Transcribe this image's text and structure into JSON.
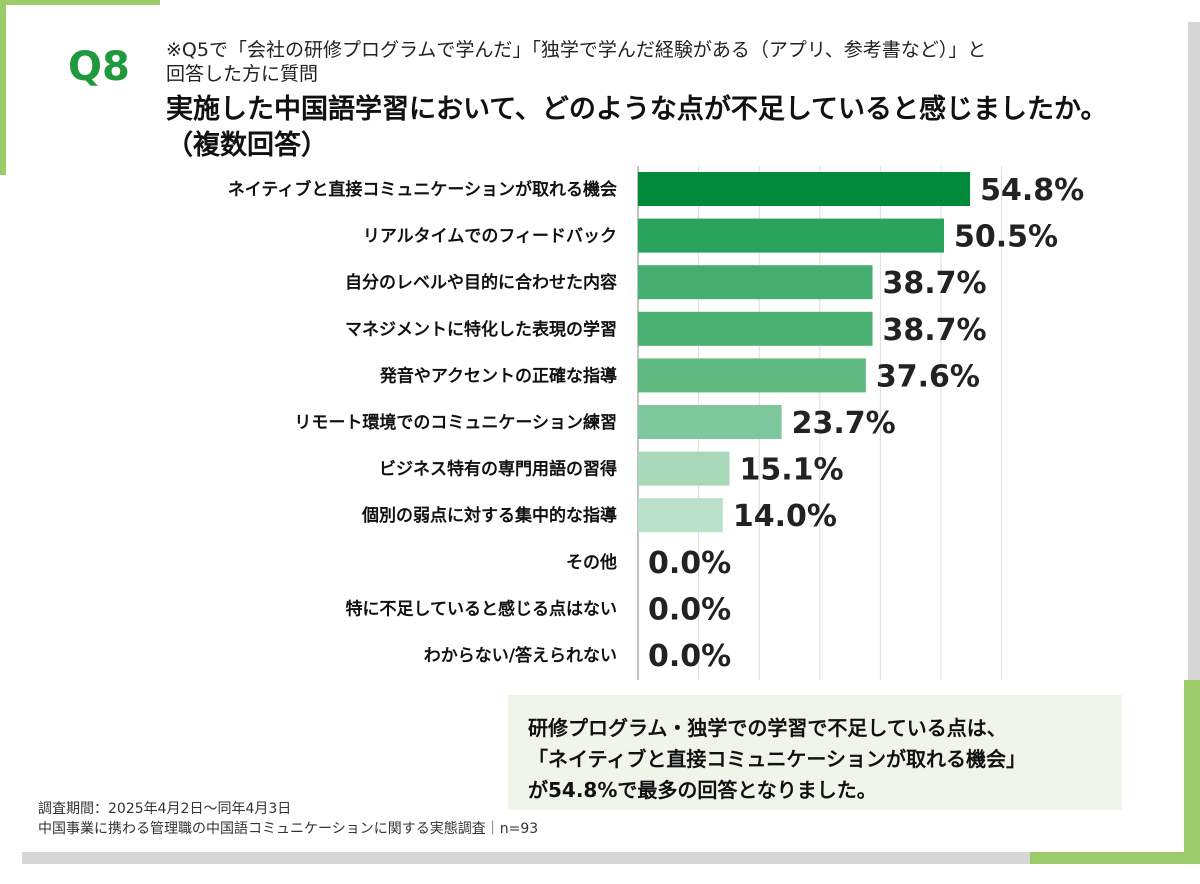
{
  "question_label": "Q8",
  "subtitle_lines": [
    "※Q5で「会社の研修プログラムで学んだ」「独学で学んだ経験がある（アプリ、参考書など）」と",
    "回答した方に質問"
  ],
  "title_lines": [
    "実施した中国語学習において、どのような点が不足していると感じましたか。",
    "（複数回答）"
  ],
  "chart_data": {
    "type": "bar",
    "orientation": "horizontal",
    "categories": [
      "ネイティブと直接コミュニケーションが取れる機会",
      "リアルタイムでのフィードバック",
      "自分のレベルや目的に合わせた内容",
      "マネジメントに特化した表現の学習",
      "発音やアクセントの正確な指導",
      "リモート環境でのコミュニケーション練習",
      "ビジネス特有の専門用語の習得",
      "個別の弱点に対する集中的な指導",
      "その他",
      "特に不足していると感じる点はない",
      "わからない/答えられない"
    ],
    "values": [
      54.8,
      50.5,
      38.7,
      38.7,
      37.6,
      23.7,
      15.1,
      14.0,
      0.0,
      0.0,
      0.0
    ],
    "value_labels": [
      "54.8%",
      "50.5%",
      "38.7%",
      "38.7%",
      "37.6%",
      "23.7%",
      "15.1%",
      "14.0%",
      "0.0%",
      "0.0%",
      "0.0%"
    ],
    "bar_colors": [
      "#008a3a",
      "#2aa35c",
      "#45ad70",
      "#4ab173",
      "#5fba82",
      "#7fc79c",
      "#a6d8b9",
      "#b9e0c8",
      "#c8e6d2",
      "#c8e6d2",
      "#c8e6d2"
    ],
    "xlim": [
      0,
      60
    ],
    "grid": true
  },
  "note_lines": [
    "研修プログラム・独学での学習で不足している点は、",
    "「ネイティブと直接コミュニケーションが取れる機会」",
    "が54.8%で最多の回答となりました。"
  ],
  "footer_lines": [
    "調査期間：2025年4月2日～同年4月3日",
    "中国事業に携わる管理職の中国語コミュニケーションに関する実態調査｜n=93"
  ],
  "colors": {
    "accent": "#9ccc6a",
    "q_label": "#1e9a3d",
    "note_bg": "#eff5e9"
  }
}
